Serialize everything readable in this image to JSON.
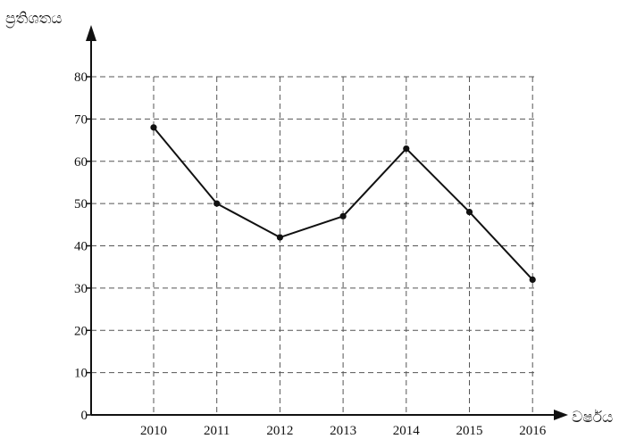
{
  "chart_data": {
    "type": "line",
    "title": "",
    "xlabel": "වර්ෂය",
    "ylabel": "ප්‍රතිශතය",
    "categories": [
      "2010",
      "2011",
      "2012",
      "2013",
      "2014",
      "2015",
      "2016"
    ],
    "series": [
      {
        "values": [
          68,
          50,
          42,
          47,
          63,
          48,
          32
        ]
      }
    ],
    "ylim": [
      0,
      80
    ],
    "yticks": [
      0,
      10,
      20,
      30,
      40,
      50,
      60,
      70,
      80
    ],
    "grid": true,
    "grid_style": "dashed",
    "legend": "none"
  }
}
